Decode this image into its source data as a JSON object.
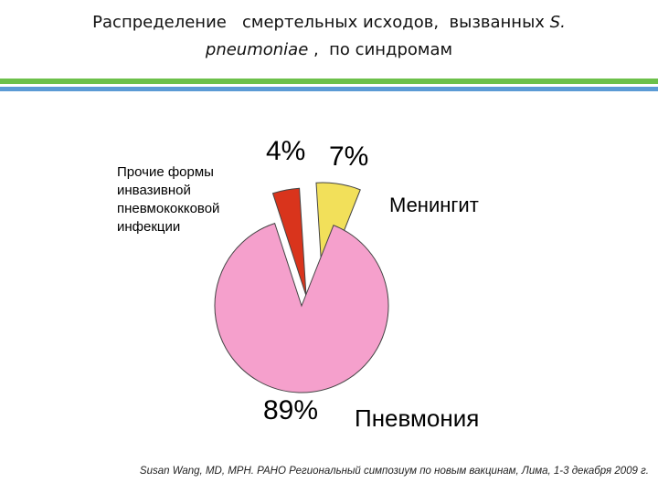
{
  "title": {
    "line1": "Распределение   смертельных исходов,  вызванных ",
    "species": "S.",
    "line2_species": "pneumoniae",
    "line2_rest": " ,  по синдромам"
  },
  "colors": {
    "accent_green": "#6cc04a",
    "accent_blue": "#5b9bd5",
    "pneumonia": "#f5a0cc",
    "meningitis": "#f2e05a",
    "other": "#d9341c",
    "outline": "#444444"
  },
  "chart_data": {
    "type": "pie",
    "title": "",
    "exploded": true,
    "slices": [
      {
        "label": "Прочие формы\nинвазивной\nпневмококковой\nинфекции",
        "value": 4,
        "value_label": "4%",
        "color": "#d9341c"
      },
      {
        "label": "Менингит",
        "value": 7,
        "value_label": "7%",
        "color": "#f2e05a"
      },
      {
        "label": "Пневмония",
        "value": 89,
        "value_label": "89%",
        "color": "#f5a0cc"
      }
    ]
  },
  "source": "Susan Wang, MD, MPH. PAHO Региональный симпозиум по новым вакцинам, Лима, 1-3 декабря 2009 г."
}
